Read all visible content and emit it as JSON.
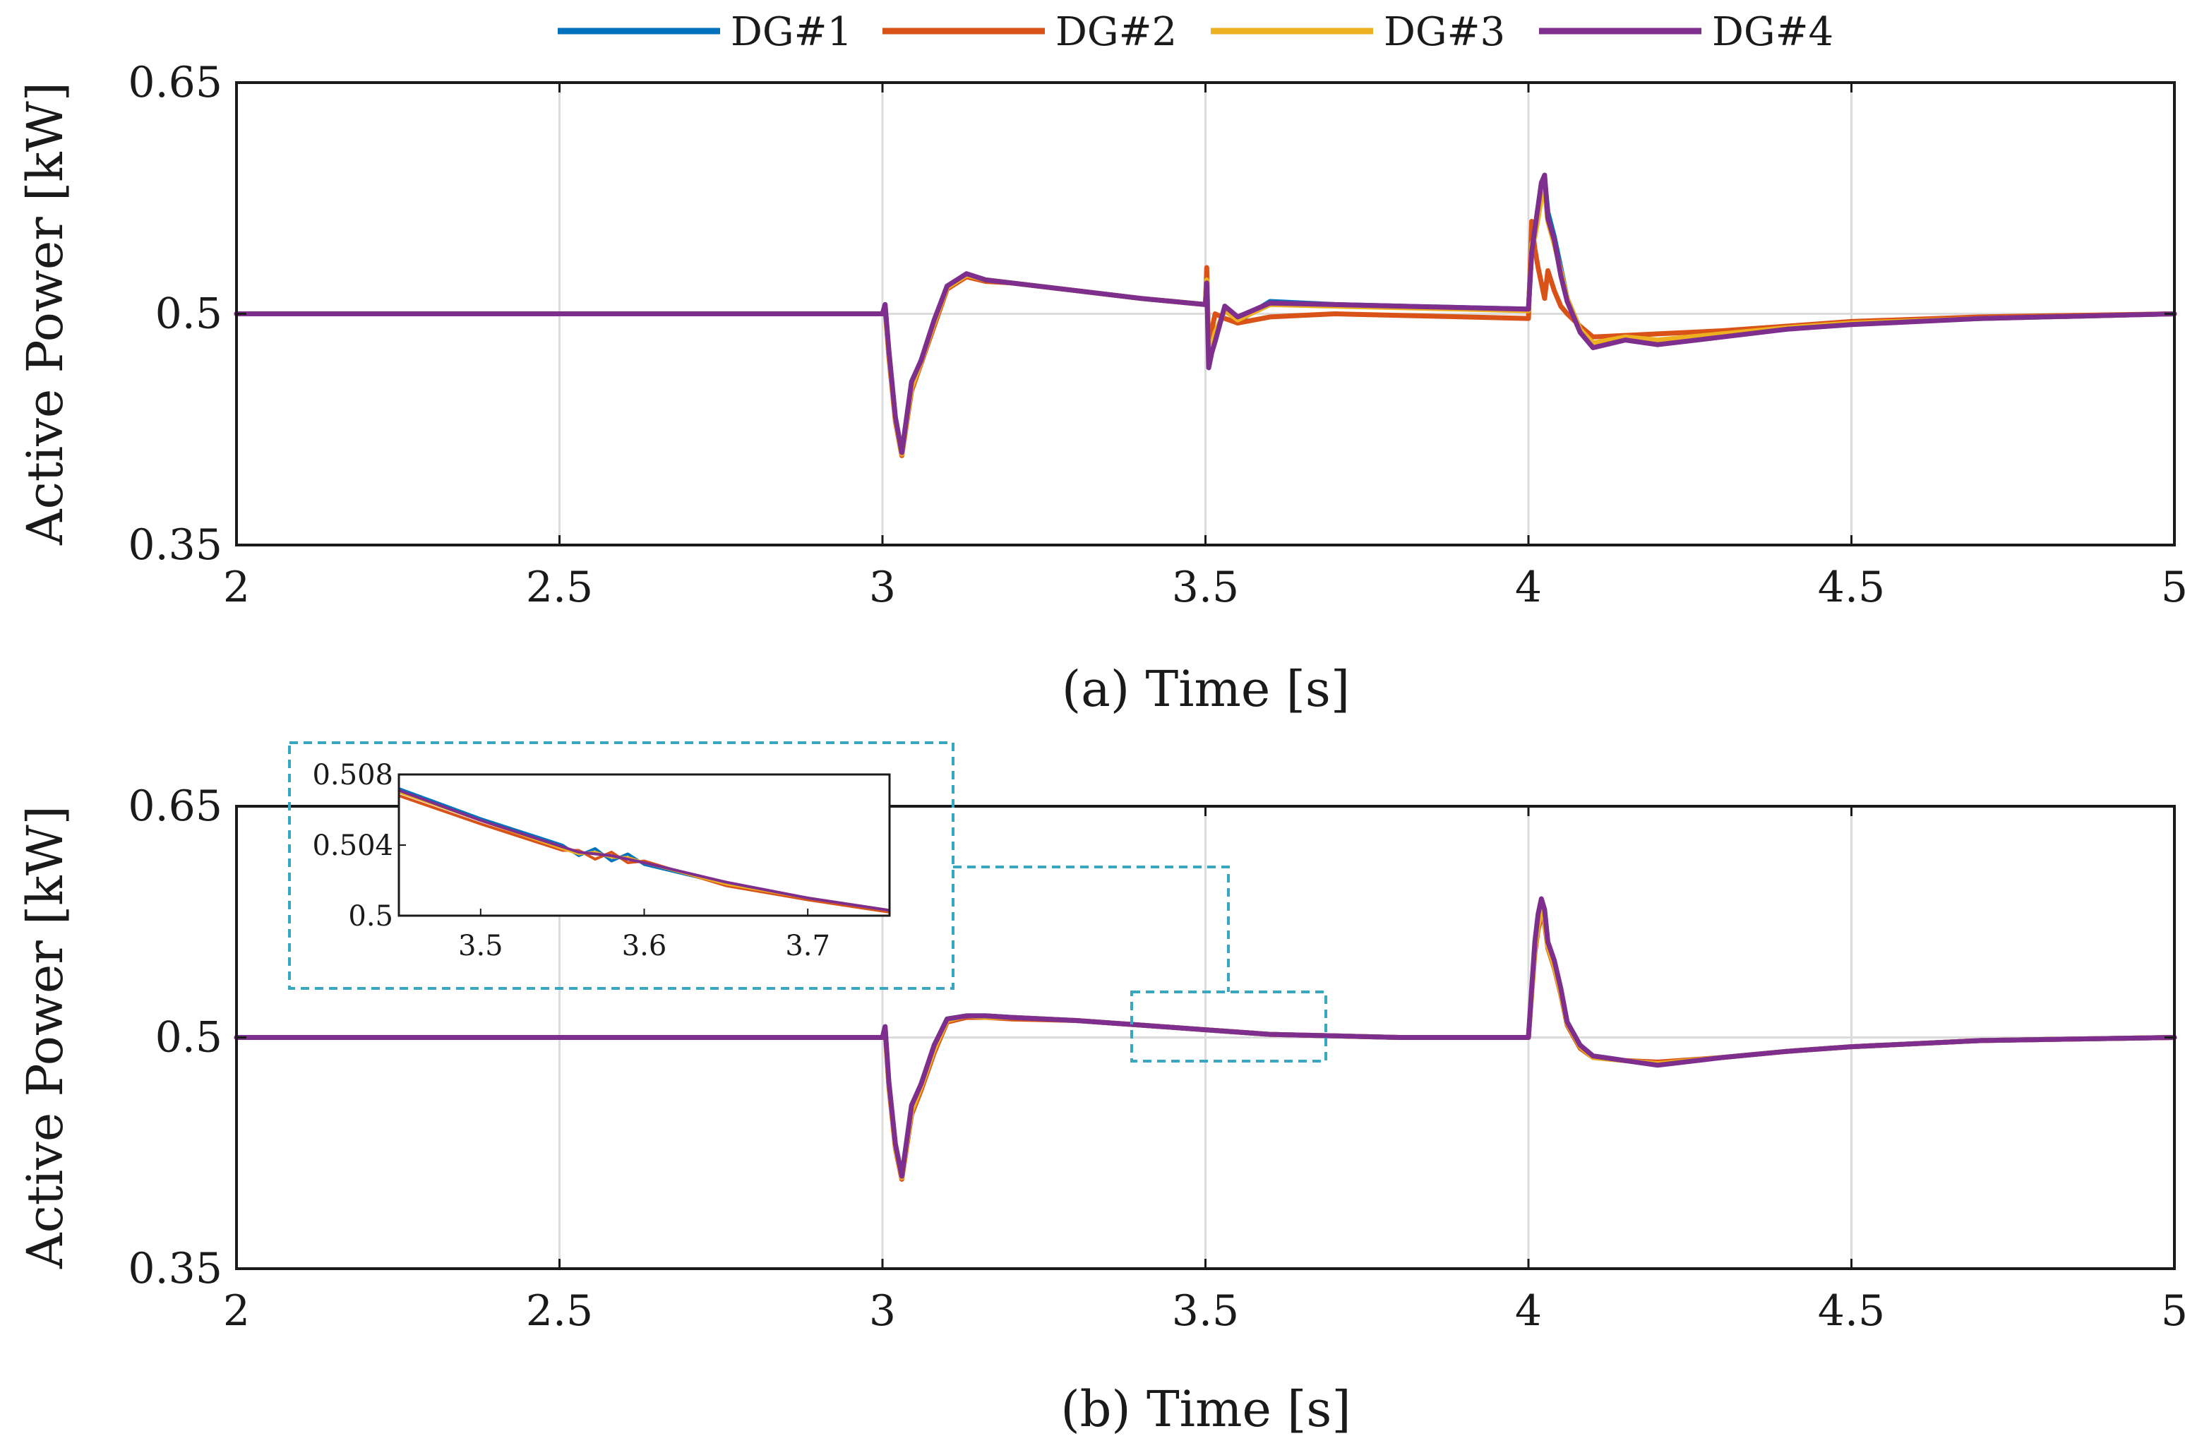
{
  "chart_data": [
    {
      "id": "a",
      "type": "line",
      "caption": "(a) Time [s]",
      "xlabel": "Time [s]",
      "ylabel": "Active Power [kW]",
      "xlim": [
        2,
        5
      ],
      "ylim": [
        0.35,
        0.65
      ],
      "xticks": [
        2,
        2.5,
        3,
        3.5,
        4,
        4.5,
        5
      ],
      "xtick_labels": [
        "2",
        "2.5",
        "3",
        "3.5",
        "4",
        "4.5",
        "5"
      ],
      "yticks": [
        0.35,
        0.5,
        0.65
      ],
      "ytick_labels": [
        "0.35",
        "0.5",
        "0.65"
      ],
      "grid": true,
      "legend": {
        "placement": "top-center",
        "entries": [
          "DG#1",
          "DG#2",
          "DG#3",
          "DG#4"
        ]
      },
      "series": [
        {
          "name": "DG#1",
          "color": "#0072BD",
          "x": [
            2,
            3,
            3.004,
            3.01,
            3.02,
            3.03,
            3.045,
            3.06,
            3.08,
            3.1,
            3.13,
            3.16,
            3.2,
            3.3,
            3.4,
            3.5,
            3.502,
            3.505,
            3.51,
            3.515,
            3.53,
            3.55,
            3.6,
            3.7,
            3.8,
            3.9,
            4,
            4.005,
            4.01,
            4.015,
            4.02,
            4.025,
            4.03,
            4.04,
            4.05,
            4.06,
            4.08,
            4.1,
            4.15,
            4.2,
            4.3,
            4.4,
            4.5,
            4.7,
            5
          ],
          "y": [
            0.5,
            0.5,
            0.506,
            0.475,
            0.432,
            0.41,
            0.455,
            0.47,
            0.495,
            0.518,
            0.525,
            0.522,
            0.52,
            0.515,
            0.51,
            0.506,
            0.525,
            0.47,
            0.478,
            0.485,
            0.503,
            0.495,
            0.508,
            0.506,
            0.505,
            0.504,
            0.503,
            0.54,
            0.552,
            0.568,
            0.582,
            0.588,
            0.566,
            0.55,
            0.53,
            0.51,
            0.49,
            0.48,
            0.485,
            0.482,
            0.486,
            0.49,
            0.494,
            0.497,
            0.5
          ]
        },
        {
          "name": "DG#2",
          "color": "#D95319",
          "x": [
            2,
            3,
            3.004,
            3.01,
            3.02,
            3.03,
            3.045,
            3.06,
            3.08,
            3.1,
            3.13,
            3.16,
            3.2,
            3.3,
            3.4,
            3.5,
            3.502,
            3.505,
            3.51,
            3.515,
            3.53,
            3.55,
            3.6,
            3.7,
            3.8,
            3.9,
            4,
            4.005,
            4.01,
            4.015,
            4.02,
            4.025,
            4.03,
            4.04,
            4.05,
            4.06,
            4.08,
            4.1,
            4.15,
            4.2,
            4.3,
            4.4,
            4.5,
            4.7,
            5
          ],
          "y": [
            0.5,
            0.5,
            0.504,
            0.472,
            0.43,
            0.408,
            0.45,
            0.468,
            0.492,
            0.516,
            0.524,
            0.521,
            0.52,
            0.515,
            0.51,
            0.506,
            0.53,
            0.475,
            0.49,
            0.5,
            0.497,
            0.494,
            0.498,
            0.5,
            0.499,
            0.498,
            0.497,
            0.56,
            0.542,
            0.53,
            0.52,
            0.51,
            0.528,
            0.515,
            0.505,
            0.5,
            0.492,
            0.485,
            0.486,
            0.487,
            0.489,
            0.492,
            0.495,
            0.498,
            0.5
          ]
        },
        {
          "name": "DG#3",
          "color": "#EDB120",
          "x": [
            2,
            3,
            3.004,
            3.01,
            3.02,
            3.03,
            3.045,
            3.06,
            3.08,
            3.1,
            3.13,
            3.16,
            3.2,
            3.3,
            3.4,
            3.5,
            3.502,
            3.505,
            3.51,
            3.515,
            3.53,
            3.55,
            3.6,
            3.7,
            3.8,
            3.9,
            4,
            4.005,
            4.01,
            4.015,
            4.02,
            4.025,
            4.03,
            4.04,
            4.05,
            4.06,
            4.08,
            4.1,
            4.15,
            4.2,
            4.3,
            4.4,
            4.5,
            4.7,
            5
          ],
          "y": [
            0.5,
            0.5,
            0.505,
            0.474,
            0.431,
            0.409,
            0.452,
            0.469,
            0.494,
            0.517,
            0.525,
            0.522,
            0.52,
            0.515,
            0.51,
            0.506,
            0.522,
            0.468,
            0.48,
            0.488,
            0.502,
            0.496,
            0.506,
            0.505,
            0.504,
            0.503,
            0.502,
            0.545,
            0.55,
            0.562,
            0.575,
            0.58,
            0.56,
            0.545,
            0.528,
            0.51,
            0.49,
            0.481,
            0.485,
            0.483,
            0.487,
            0.491,
            0.494,
            0.497,
            0.5
          ]
        },
        {
          "name": "DG#4",
          "color": "#7E2F8E",
          "x": [
            2,
            3,
            3.004,
            3.01,
            3.02,
            3.03,
            3.045,
            3.06,
            3.08,
            3.1,
            3.13,
            3.16,
            3.2,
            3.3,
            3.4,
            3.5,
            3.502,
            3.505,
            3.51,
            3.515,
            3.53,
            3.55,
            3.6,
            3.7,
            3.8,
            3.9,
            4,
            4.005,
            4.01,
            4.015,
            4.02,
            4.025,
            4.03,
            4.04,
            4.05,
            4.06,
            4.08,
            4.1,
            4.15,
            4.2,
            4.3,
            4.4,
            4.5,
            4.7,
            5
          ],
          "y": [
            0.5,
            0.5,
            0.506,
            0.476,
            0.433,
            0.41,
            0.456,
            0.47,
            0.496,
            0.518,
            0.526,
            0.522,
            0.52,
            0.515,
            0.51,
            0.506,
            0.52,
            0.465,
            0.475,
            0.482,
            0.505,
            0.498,
            0.507,
            0.506,
            0.505,
            0.504,
            0.503,
            0.54,
            0.555,
            0.57,
            0.585,
            0.59,
            0.562,
            0.548,
            0.525,
            0.508,
            0.488,
            0.478,
            0.483,
            0.48,
            0.485,
            0.49,
            0.493,
            0.497,
            0.5
          ]
        }
      ]
    },
    {
      "id": "b",
      "type": "line",
      "caption": "(b) Time [s]",
      "xlabel": "Time [s]",
      "ylabel": "Active Power [kW]",
      "xlim": [
        2,
        5
      ],
      "ylim": [
        0.35,
        0.65
      ],
      "xticks": [
        2,
        2.5,
        3,
        3.5,
        4,
        4.5,
        5
      ],
      "xtick_labels": [
        "2",
        "2.5",
        "3",
        "3.5",
        "4",
        "4.5",
        "5"
      ],
      "yticks": [
        0.35,
        0.5,
        0.65
      ],
      "ytick_labels": [
        "0.35",
        "0.5",
        "0.65"
      ],
      "grid": true,
      "series": [
        {
          "name": "DG#1",
          "color": "#0072BD",
          "x": [
            2,
            3,
            3.004,
            3.01,
            3.02,
            3.03,
            3.045,
            3.06,
            3.08,
            3.1,
            3.13,
            3.16,
            3.2,
            3.3,
            3.4,
            3.5,
            3.6,
            3.7,
            3.8,
            3.9,
            4,
            4.005,
            4.01,
            4.015,
            4.02,
            4.025,
            4.03,
            4.04,
            4.05,
            4.06,
            4.08,
            4.1,
            4.15,
            4.2,
            4.3,
            4.4,
            4.5,
            4.7,
            5
          ],
          "y": [
            0.5,
            0.5,
            0.507,
            0.47,
            0.43,
            0.41,
            0.455,
            0.47,
            0.494,
            0.512,
            0.514,
            0.514,
            0.513,
            0.511,
            0.508,
            0.505,
            0.502,
            0.501,
            0.5,
            0.5,
            0.5,
            0.53,
            0.56,
            0.575,
            0.585,
            0.58,
            0.56,
            0.548,
            0.53,
            0.51,
            0.495,
            0.488,
            0.485,
            0.483,
            0.487,
            0.491,
            0.494,
            0.498,
            0.5
          ]
        },
        {
          "name": "DG#2",
          "color": "#D95319",
          "x": [
            2,
            3,
            3.004,
            3.01,
            3.02,
            3.03,
            3.045,
            3.06,
            3.08,
            3.1,
            3.13,
            3.16,
            3.2,
            3.3,
            3.4,
            3.5,
            3.6,
            3.7,
            3.8,
            3.9,
            4,
            4.005,
            4.01,
            4.015,
            4.02,
            4.025,
            4.03,
            4.04,
            4.05,
            4.06,
            4.08,
            4.1,
            4.15,
            4.2,
            4.3,
            4.4,
            4.5,
            4.7,
            5
          ],
          "y": [
            0.5,
            0.5,
            0.505,
            0.468,
            0.428,
            0.408,
            0.45,
            0.466,
            0.49,
            0.51,
            0.513,
            0.513,
            0.512,
            0.511,
            0.508,
            0.505,
            0.502,
            0.501,
            0.5,
            0.5,
            0.5,
            0.528,
            0.555,
            0.57,
            0.578,
            0.574,
            0.558,
            0.545,
            0.528,
            0.508,
            0.493,
            0.487,
            0.485,
            0.484,
            0.487,
            0.491,
            0.494,
            0.498,
            0.5
          ]
        },
        {
          "name": "DG#3",
          "color": "#EDB120",
          "x": [
            2,
            3,
            3.004,
            3.01,
            3.02,
            3.03,
            3.045,
            3.06,
            3.08,
            3.1,
            3.13,
            3.16,
            3.2,
            3.3,
            3.4,
            3.5,
            3.6,
            3.7,
            3.8,
            3.9,
            4,
            4.005,
            4.01,
            4.015,
            4.02,
            4.025,
            4.03,
            4.04,
            4.05,
            4.06,
            4.08,
            4.1,
            4.15,
            4.2,
            4.3,
            4.4,
            4.5,
            4.7,
            5
          ],
          "y": [
            0.5,
            0.5,
            0.506,
            0.469,
            0.429,
            0.409,
            0.452,
            0.468,
            0.492,
            0.511,
            0.514,
            0.513,
            0.513,
            0.511,
            0.508,
            0.505,
            0.502,
            0.501,
            0.5,
            0.5,
            0.5,
            0.529,
            0.558,
            0.572,
            0.582,
            0.577,
            0.559,
            0.546,
            0.529,
            0.509,
            0.494,
            0.487,
            0.485,
            0.483,
            0.487,
            0.491,
            0.494,
            0.498,
            0.5
          ]
        },
        {
          "name": "DG#4",
          "color": "#7E2F8E",
          "x": [
            2,
            3,
            3.004,
            3.01,
            3.02,
            3.03,
            3.045,
            3.06,
            3.08,
            3.1,
            3.13,
            3.16,
            3.2,
            3.3,
            3.4,
            3.5,
            3.6,
            3.7,
            3.8,
            3.9,
            4,
            4.005,
            4.01,
            4.015,
            4.02,
            4.025,
            4.03,
            4.04,
            4.05,
            4.06,
            4.08,
            4.1,
            4.15,
            4.2,
            4.3,
            4.4,
            4.5,
            4.7,
            5
          ],
          "y": [
            0.5,
            0.5,
            0.507,
            0.471,
            0.431,
            0.41,
            0.456,
            0.47,
            0.495,
            0.512,
            0.514,
            0.514,
            0.513,
            0.511,
            0.508,
            0.505,
            0.502,
            0.501,
            0.5,
            0.5,
            0.5,
            0.532,
            0.562,
            0.58,
            0.59,
            0.583,
            0.562,
            0.55,
            0.532,
            0.51,
            0.495,
            0.488,
            0.485,
            0.482,
            0.487,
            0.491,
            0.494,
            0.498,
            0.5
          ]
        }
      ],
      "zoom_region": {
        "xlim": [
          3.45,
          3.75
        ],
        "ylim": [
          0.5,
          0.508
        ]
      },
      "inset": {
        "xlim": [
          3.45,
          3.75
        ],
        "ylim": [
          0.5,
          0.508
        ],
        "xticks": [
          3.5,
          3.6,
          3.7
        ],
        "xtick_labels": [
          "3.5",
          "3.6",
          "3.7"
        ],
        "yticks": [
          0.5,
          0.504,
          0.508
        ],
        "ytick_labels": [
          "0.5",
          "0.504",
          "0.508"
        ],
        "series": [
          {
            "name": "DG#1",
            "color": "#0072BD",
            "x": [
              3.45,
              3.5,
              3.55,
              3.56,
              3.57,
              3.58,
              3.59,
              3.6,
              3.65,
              3.7,
              3.75
            ],
            "y": [
              0.5072,
              0.5055,
              0.504,
              0.5034,
              0.5038,
              0.5031,
              0.5035,
              0.5029,
              0.5018,
              0.501,
              0.5003
            ]
          },
          {
            "name": "DG#2",
            "color": "#D95319",
            "x": [
              3.45,
              3.5,
              3.55,
              3.56,
              3.57,
              3.58,
              3.59,
              3.6,
              3.65,
              3.7,
              3.75
            ],
            "y": [
              0.5068,
              0.5052,
              0.5037,
              0.5037,
              0.5032,
              0.5036,
              0.503,
              0.5031,
              0.5017,
              0.5009,
              0.5002
            ]
          },
          {
            "name": "DG#3",
            "color": "#EDB120",
            "x": [
              3.45,
              3.5,
              3.55,
              3.56,
              3.57,
              3.58,
              3.59,
              3.6,
              3.65,
              3.7,
              3.75
            ],
            "y": [
              0.507,
              0.5054,
              0.5038,
              0.5035,
              0.5036,
              0.5033,
              0.5033,
              0.503,
              0.5018,
              0.501,
              0.5003
            ]
          },
          {
            "name": "DG#4",
            "color": "#7E2F8E",
            "x": [
              3.45,
              3.5,
              3.55,
              3.56,
              3.57,
              3.58,
              3.59,
              3.6,
              3.65,
              3.7,
              3.75
            ],
            "y": [
              0.5071,
              0.5054,
              0.5039,
              0.5036,
              0.5035,
              0.5034,
              0.5032,
              0.503,
              0.5019,
              0.501,
              0.5003
            ]
          }
        ]
      }
    }
  ]
}
